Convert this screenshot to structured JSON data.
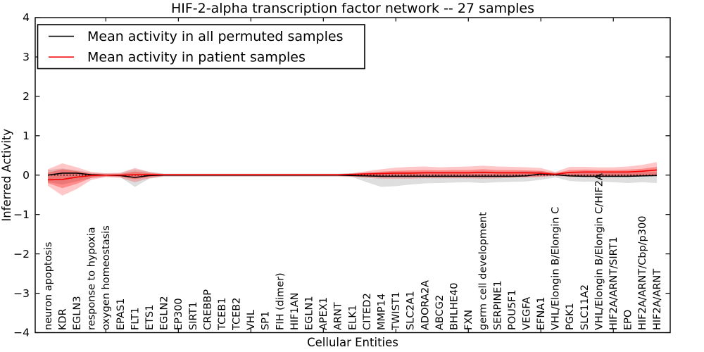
{
  "figure": {
    "background": "#ffffff"
  },
  "chart_data": {
    "type": "line",
    "title": "HIF-2-alpha transcription factor network -- 27 samples",
    "xlabel": "Cellular Entities",
    "ylabel": "Inferred Activity",
    "ylim": [
      -4,
      4
    ],
    "yticks": [
      4,
      3,
      2,
      1,
      0,
      -1,
      -2,
      -3,
      -4
    ],
    "xtick_positions": [
      5,
      10,
      15,
      20,
      25,
      30,
      35,
      40
    ],
    "grid": false,
    "legend_position": "upper left",
    "zero_line": true,
    "colors": {
      "permuted_line": "#000000",
      "patient_line": "#f40000",
      "permuted_band": "rgba(0,0,0,0.13)",
      "patient_band_outer": "rgba(255,0,0,0.22)",
      "patient_band_inner": "rgba(255,0,0,0.30)"
    },
    "categories": [
      "neuron apoptosis",
      "KDR",
      "EGLN3",
      "response to hypoxia",
      "oxygen homeostasis",
      "EPAS1",
      "FLT1",
      "ETS1",
      "EGLN2",
      "EP300",
      "SIRT1",
      "CREBBP",
      "TCEB1",
      "TCEB2",
      "VHL",
      "SP1",
      "FIH (dimer)",
      "HIF1AN",
      "EGLN1",
      "APEX1",
      "ARNT",
      "ELK1",
      "CITED2",
      "MMP14",
      "TWIST1",
      "SLC2A1",
      "ADORA2A",
      "ABCG2",
      "BHLHE40",
      "FXN",
      "germ cell development",
      "SERPINE1",
      "POU5F1",
      "VEGFA",
      "EFNA1",
      "VHL/Elongin B/Elongin C",
      "PGK1",
      "SLC11A2",
      "VHL/Elongin B/Elongin C/HIF2A",
      "HIF2A/ARNT/SIRT1",
      "EPO",
      "HIF2A/ARNT/Cbp/p300",
      "HIF2A/ARNT"
    ],
    "series": [
      {
        "name": "Mean activity in all permuted samples",
        "color": "#000000",
        "values": [
          0.0,
          0.05,
          0.05,
          0.01,
          0.0,
          -0.01,
          -0.06,
          -0.01,
          0,
          0,
          0,
          0,
          0,
          0,
          0,
          0,
          0,
          0,
          0,
          0,
          0,
          -0.01,
          -0.02,
          -0.03,
          -0.03,
          -0.03,
          -0.03,
          -0.03,
          -0.03,
          -0.03,
          -0.03,
          -0.03,
          -0.03,
          -0.02,
          0.03,
          0.01,
          -0.02,
          -0.03,
          -0.03,
          -0.03,
          -0.03,
          -0.02,
          -0.01
        ]
      },
      {
        "name": "Mean activity in patient samples",
        "color": "#f40000",
        "values": [
          -0.12,
          -0.11,
          -0.05,
          -0.01,
          0.0,
          0.0,
          0.01,
          0.01,
          0.01,
          0.01,
          0.01,
          0.01,
          0.01,
          0.01,
          0.01,
          0.01,
          0.01,
          0.01,
          0.01,
          0.01,
          0.01,
          0.02,
          0.03,
          0.04,
          0.05,
          0.05,
          0.06,
          0.06,
          0.06,
          0.06,
          0.07,
          0.06,
          0.06,
          0.06,
          0.05,
          0.02,
          0.07,
          0.08,
          0.08,
          0.08,
          0.08,
          0.1,
          0.13
        ]
      }
    ],
    "bands": [
      {
        "name": "permuted-range",
        "color": "rgba(0,0,0,0.13)",
        "lo": [
          -0.18,
          -0.24,
          -0.16,
          -0.07,
          -0.04,
          -0.05,
          -0.3,
          -0.09,
          -0.04,
          -0.04,
          -0.04,
          -0.04,
          -0.04,
          -0.04,
          -0.04,
          -0.04,
          -0.04,
          -0.04,
          -0.04,
          -0.04,
          -0.04,
          -0.05,
          -0.18,
          -0.3,
          -0.28,
          -0.24,
          -0.21,
          -0.2,
          -0.19,
          -0.18,
          -0.2,
          -0.18,
          -0.17,
          -0.16,
          -0.12,
          -0.06,
          -0.15,
          -0.17,
          -0.16,
          -0.18,
          -0.2,
          -0.18,
          -0.2
        ],
        "hi": [
          0.13,
          0.17,
          0.12,
          0.06,
          0.04,
          0.05,
          0.15,
          0.08,
          0.04,
          0.04,
          0.04,
          0.04,
          0.04,
          0.04,
          0.04,
          0.04,
          0.04,
          0.04,
          0.04,
          0.04,
          0.04,
          0.05,
          0.07,
          0.08,
          0.09,
          0.09,
          0.09,
          0.09,
          0.09,
          0.09,
          0.1,
          0.09,
          0.09,
          0.1,
          0.1,
          0.06,
          0.08,
          0.07,
          0.07,
          0.07,
          0.07,
          0.08,
          0.08
        ]
      },
      {
        "name": "patient-range-outer",
        "color": "rgba(255,0,0,0.22)",
        "lo": [
          -0.27,
          -0.52,
          -0.35,
          -0.12,
          -0.05,
          -0.07,
          -0.18,
          -0.08,
          -0.03,
          -0.03,
          -0.03,
          -0.03,
          -0.03,
          -0.03,
          -0.03,
          -0.03,
          -0.03,
          -0.03,
          -0.03,
          -0.03,
          -0.03,
          -0.04,
          -0.07,
          -0.09,
          -0.09,
          -0.09,
          -0.08,
          -0.08,
          -0.08,
          -0.08,
          -0.09,
          -0.08,
          -0.07,
          -0.06,
          -0.05,
          -0.02,
          -0.05,
          -0.05,
          -0.05,
          -0.05,
          -0.04,
          -0.03,
          -0.02
        ],
        "hi": [
          0.15,
          0.3,
          0.2,
          0.08,
          0.05,
          0.06,
          0.18,
          0.08,
          0.03,
          0.03,
          0.03,
          0.03,
          0.03,
          0.03,
          0.03,
          0.03,
          0.03,
          0.03,
          0.03,
          0.03,
          0.03,
          0.05,
          0.1,
          0.15,
          0.19,
          0.21,
          0.22,
          0.2,
          0.21,
          0.22,
          0.24,
          0.22,
          0.21,
          0.2,
          0.18,
          0.08,
          0.21,
          0.21,
          0.2,
          0.2,
          0.22,
          0.26,
          0.33
        ]
      },
      {
        "name": "patient-range-inner",
        "color": "rgba(255,0,0,0.30)",
        "lo": [
          -0.2,
          -0.33,
          -0.22,
          -0.07,
          -0.03,
          -0.04,
          -0.1,
          -0.05,
          -0.02,
          -0.02,
          -0.02,
          -0.02,
          -0.02,
          -0.02,
          -0.02,
          -0.02,
          -0.02,
          -0.02,
          -0.02,
          -0.02,
          -0.02,
          -0.03,
          -0.04,
          -0.05,
          -0.05,
          -0.05,
          -0.05,
          -0.05,
          -0.05,
          -0.05,
          -0.05,
          -0.05,
          -0.04,
          -0.04,
          -0.03,
          -0.01,
          -0.03,
          -0.03,
          -0.03,
          -0.03,
          -0.02,
          -0.02,
          -0.01
        ],
        "hi": [
          0.06,
          0.15,
          0.1,
          0.04,
          0.02,
          0.03,
          0.09,
          0.05,
          0.02,
          0.02,
          0.02,
          0.02,
          0.02,
          0.02,
          0.02,
          0.02,
          0.02,
          0.02,
          0.02,
          0.02,
          0.02,
          0.03,
          0.06,
          0.09,
          0.11,
          0.12,
          0.13,
          0.12,
          0.13,
          0.13,
          0.15,
          0.13,
          0.13,
          0.12,
          0.11,
          0.05,
          0.13,
          0.14,
          0.13,
          0.13,
          0.14,
          0.16,
          0.21
        ]
      }
    ]
  }
}
